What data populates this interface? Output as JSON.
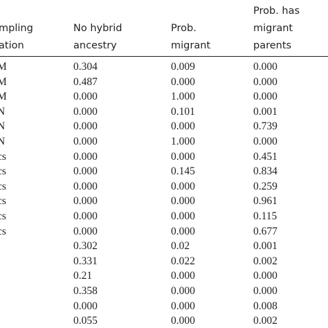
{
  "table": {
    "headers": [
      [
        "mpling",
        "ation"
      ],
      [
        "No hybrid",
        "ancestry"
      ],
      [
        "Prob.",
        "migrant"
      ],
      [
        "Prob. has",
        "migrant",
        "parents"
      ]
    ],
    "rows": [
      {
        "location": "M",
        "cells": [
          "0.304",
          "0.009",
          "0.000"
        ]
      },
      {
        "location": "M",
        "cells": [
          "0.487",
          "0.000",
          "0.000"
        ]
      },
      {
        "location": "M",
        "cells": [
          "0.000",
          "1.000",
          "0.000"
        ]
      },
      {
        "location": "N",
        "cells": [
          "0.000",
          "0.101",
          "0.001"
        ]
      },
      {
        "location": "N",
        "cells": [
          "0.000",
          "0.000",
          "0.739"
        ]
      },
      {
        "location": "N",
        "cells": [
          "0.000",
          "1.000",
          "0.000"
        ]
      },
      {
        "location": "cs",
        "cells": [
          "0.000",
          "0.000",
          "0.451"
        ]
      },
      {
        "location": "cs",
        "cells": [
          "0.000",
          "0.145",
          "0.834"
        ]
      },
      {
        "location": "cs",
        "cells": [
          "0.000",
          "0.000",
          "0.259"
        ]
      },
      {
        "location": "cs",
        "cells": [
          "0.000",
          "0.000",
          "0.961"
        ]
      },
      {
        "location": "cs",
        "cells": [
          "0.000",
          "0.000",
          "0.115"
        ]
      },
      {
        "location": "cs",
        "cells": [
          "0.000",
          "0.000",
          "0.677"
        ]
      },
      {
        "cells": [
          "0.302",
          "0.02",
          "0.001"
        ]
      },
      {
        "cells": [
          "0.331",
          "0.022",
          "0.002"
        ]
      },
      {
        "cells": [
          "0.21",
          "0.000",
          "0.000"
        ]
      },
      {
        "cells": [
          "0.358",
          "0.000",
          "0.000"
        ]
      },
      {
        "cells": [
          "0.000",
          "0.000",
          "0.008"
        ]
      },
      {
        "cells": [
          "0.055",
          "0.000",
          "0.002"
        ]
      }
    ]
  }
}
